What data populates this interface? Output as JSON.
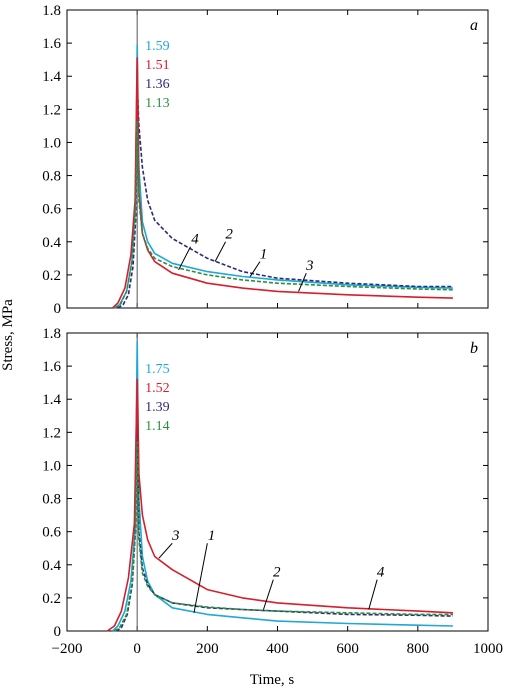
{
  "ylabel": "Stress, MPa",
  "xlabel": "Time, s",
  "chart_data": [
    {
      "type": "line",
      "panel_label": "a",
      "xlim": [
        -200,
        1000
      ],
      "ylim": [
        0,
        1.8
      ],
      "xticks": [
        "−200",
        "0",
        "200",
        "400",
        "600",
        "800",
        "1000"
      ],
      "yticks": [
        "0",
        "0.2",
        "0.4",
        "0.6",
        "0.8",
        "1.0",
        "1.2",
        "1.4",
        "1.6",
        "1.8"
      ],
      "series": [
        {
          "name": "1",
          "color": "#1fa8d8",
          "dash": false,
          "points": [
            [
              -65,
              0
            ],
            [
              -50,
              0.02
            ],
            [
              -30,
              0.1
            ],
            [
              -15,
              0.28
            ],
            [
              -5,
              0.6
            ],
            [
              0,
              1.59
            ],
            [
              5,
              0.85
            ],
            [
              15,
              0.52
            ],
            [
              30,
              0.4
            ],
            [
              50,
              0.33
            ],
            [
              100,
              0.27
            ],
            [
              200,
              0.22
            ],
            [
              300,
              0.19
            ],
            [
              400,
              0.17
            ],
            [
              600,
              0.14
            ],
            [
              800,
              0.125
            ],
            [
              900,
              0.12
            ]
          ]
        },
        {
          "name": "2",
          "color": "#2e2a7a",
          "dash": true,
          "points": [
            [
              -55,
              0
            ],
            [
              -40,
              0.02
            ],
            [
              -25,
              0.08
            ],
            [
              -12,
              0.25
            ],
            [
              -4,
              0.55
            ],
            [
              0,
              1.36
            ],
            [
              5,
              1.1
            ],
            [
              15,
              0.85
            ],
            [
              30,
              0.65
            ],
            [
              50,
              0.53
            ],
            [
              100,
              0.42
            ],
            [
              200,
              0.3
            ],
            [
              300,
              0.22
            ],
            [
              400,
              0.18
            ],
            [
              600,
              0.15
            ],
            [
              800,
              0.13
            ],
            [
              900,
              0.13
            ]
          ]
        },
        {
          "name": "3",
          "color": "#d81e2c",
          "dash": false,
          "points": [
            [
              -70,
              0
            ],
            [
              -55,
              0.03
            ],
            [
              -35,
              0.12
            ],
            [
              -18,
              0.32
            ],
            [
              -6,
              0.65
            ],
            [
              0,
              1.51
            ],
            [
              5,
              0.7
            ],
            [
              15,
              0.45
            ],
            [
              30,
              0.35
            ],
            [
              50,
              0.28
            ],
            [
              100,
              0.21
            ],
            [
              200,
              0.15
            ],
            [
              300,
              0.12
            ],
            [
              400,
              0.1
            ],
            [
              600,
              0.08
            ],
            [
              800,
              0.065
            ],
            [
              900,
              0.06
            ]
          ]
        },
        {
          "name": "4",
          "color": "#2a9040",
          "dash": true,
          "points": [
            [
              -62,
              0
            ],
            [
              -48,
              0.02
            ],
            [
              -30,
              0.1
            ],
            [
              -15,
              0.28
            ],
            [
              -5,
              0.58
            ],
            [
              0,
              1.13
            ],
            [
              5,
              0.65
            ],
            [
              15,
              0.45
            ],
            [
              30,
              0.36
            ],
            [
              50,
              0.3
            ],
            [
              100,
              0.25
            ],
            [
              200,
              0.2
            ],
            [
              300,
              0.17
            ],
            [
              400,
              0.15
            ],
            [
              600,
              0.13
            ],
            [
              800,
              0.115
            ],
            [
              900,
              0.11
            ]
          ]
        }
      ],
      "peak_labels": [
        {
          "text": "1.59",
          "color": "#1fa8d8"
        },
        {
          "text": "1.51",
          "color": "#d81e2c"
        },
        {
          "text": "1.36",
          "color": "#2e2a7a"
        },
        {
          "text": "1.13",
          "color": "#2a9040"
        }
      ],
      "annotations": [
        {
          "text": "4",
          "tx": 165,
          "ty": 0.39,
          "x1": 152,
          "y1": 0.37,
          "x2": 118,
          "y2": 0.23
        },
        {
          "text": "2",
          "tx": 262,
          "ty": 0.42,
          "x1": 252,
          "y1": 0.4,
          "x2": 222,
          "y2": 0.28
        },
        {
          "text": "1",
          "tx": 360,
          "ty": 0.3,
          "x1": 350,
          "y1": 0.28,
          "x2": 322,
          "y2": 0.19
        },
        {
          "text": "3",
          "tx": 492,
          "ty": 0.23,
          "x1": 482,
          "y1": 0.21,
          "x2": 460,
          "y2": 0.1
        }
      ]
    },
    {
      "type": "line",
      "panel_label": "b",
      "xlim": [
        -200,
        1000
      ],
      "ylim": [
        0,
        1.8
      ],
      "xticks": [
        "−200",
        "0",
        "200",
        "400",
        "600",
        "800",
        "1000"
      ],
      "yticks": [
        "0",
        "0.2",
        "0.4",
        "0.6",
        "0.8",
        "1.0",
        "1.2",
        "1.4",
        "1.6",
        "1.8"
      ],
      "series": [
        {
          "name": "1",
          "color": "#1fa8d8",
          "dash": false,
          "points": [
            [
              -70,
              0
            ],
            [
              -55,
              0.03
            ],
            [
              -35,
              0.12
            ],
            [
              -18,
              0.3
            ],
            [
              -6,
              0.62
            ],
            [
              0,
              1.75
            ],
            [
              5,
              0.8
            ],
            [
              15,
              0.45
            ],
            [
              30,
              0.3
            ],
            [
              50,
              0.22
            ],
            [
              100,
              0.14
            ],
            [
              200,
              0.1
            ],
            [
              300,
              0.08
            ],
            [
              400,
              0.06
            ],
            [
              600,
              0.045
            ],
            [
              800,
              0.035
            ],
            [
              900,
              0.03
            ]
          ]
        },
        {
          "name": "2",
          "color": "#2e2a7a",
          "dash": true,
          "points": [
            [
              -60,
              0
            ],
            [
              -45,
              0.02
            ],
            [
              -28,
              0.1
            ],
            [
              -14,
              0.28
            ],
            [
              -5,
              0.6
            ],
            [
              0,
              1.39
            ],
            [
              5,
              0.6
            ],
            [
              15,
              0.38
            ],
            [
              30,
              0.28
            ],
            [
              50,
              0.22
            ],
            [
              100,
              0.17
            ],
            [
              200,
              0.14
            ],
            [
              300,
              0.13
            ],
            [
              400,
              0.12
            ],
            [
              600,
              0.1
            ],
            [
              800,
              0.095
            ],
            [
              900,
              0.09
            ]
          ]
        },
        {
          "name": "3",
          "color": "#d81e2c",
          "dash": false,
          "points": [
            [
              -85,
              0
            ],
            [
              -65,
              0.03
            ],
            [
              -45,
              0.12
            ],
            [
              -25,
              0.32
            ],
            [
              -8,
              0.65
            ],
            [
              0,
              1.52
            ],
            [
              5,
              0.95
            ],
            [
              15,
              0.7
            ],
            [
              30,
              0.55
            ],
            [
              50,
              0.45
            ],
            [
              100,
              0.37
            ],
            [
              200,
              0.25
            ],
            [
              300,
              0.2
            ],
            [
              400,
              0.17
            ],
            [
              600,
              0.14
            ],
            [
              800,
              0.12
            ],
            [
              900,
              0.11
            ]
          ]
        },
        {
          "name": "4",
          "color": "#2a9040",
          "dash": true,
          "points": [
            [
              -65,
              0
            ],
            [
              -50,
              0.02
            ],
            [
              -30,
              0.1
            ],
            [
              -15,
              0.28
            ],
            [
              -5,
              0.6
            ],
            [
              0,
              1.14
            ],
            [
              5,
              0.55
            ],
            [
              15,
              0.35
            ],
            [
              30,
              0.27
            ],
            [
              50,
              0.22
            ],
            [
              100,
              0.17
            ],
            [
              200,
              0.145
            ],
            [
              300,
              0.13
            ],
            [
              400,
              0.12
            ],
            [
              600,
              0.11
            ],
            [
              800,
              0.1
            ],
            [
              900,
              0.1
            ]
          ]
        }
      ],
      "peak_labels": [
        {
          "text": "1.75",
          "color": "#1fa8d8"
        },
        {
          "text": "1.52",
          "color": "#d81e2c"
        },
        {
          "text": "1.39",
          "color": "#2e2a7a"
        },
        {
          "text": "1.14",
          "color": "#2a9040"
        }
      ],
      "annotations": [
        {
          "text": "3",
          "tx": 110,
          "ty": 0.55,
          "x1": 100,
          "y1": 0.53,
          "x2": 62,
          "y2": 0.44
        },
        {
          "text": "1",
          "tx": 212,
          "ty": 0.55,
          "x1": 200,
          "y1": 0.53,
          "x2": 162,
          "y2": 0.11
        },
        {
          "text": "2",
          "tx": 398,
          "ty": 0.33,
          "x1": 388,
          "y1": 0.31,
          "x2": 360,
          "y2": 0.13
        },
        {
          "text": "4",
          "tx": 694,
          "ty": 0.33,
          "x1": 684,
          "y1": 0.31,
          "x2": 660,
          "y2": 0.13
        }
      ]
    }
  ]
}
